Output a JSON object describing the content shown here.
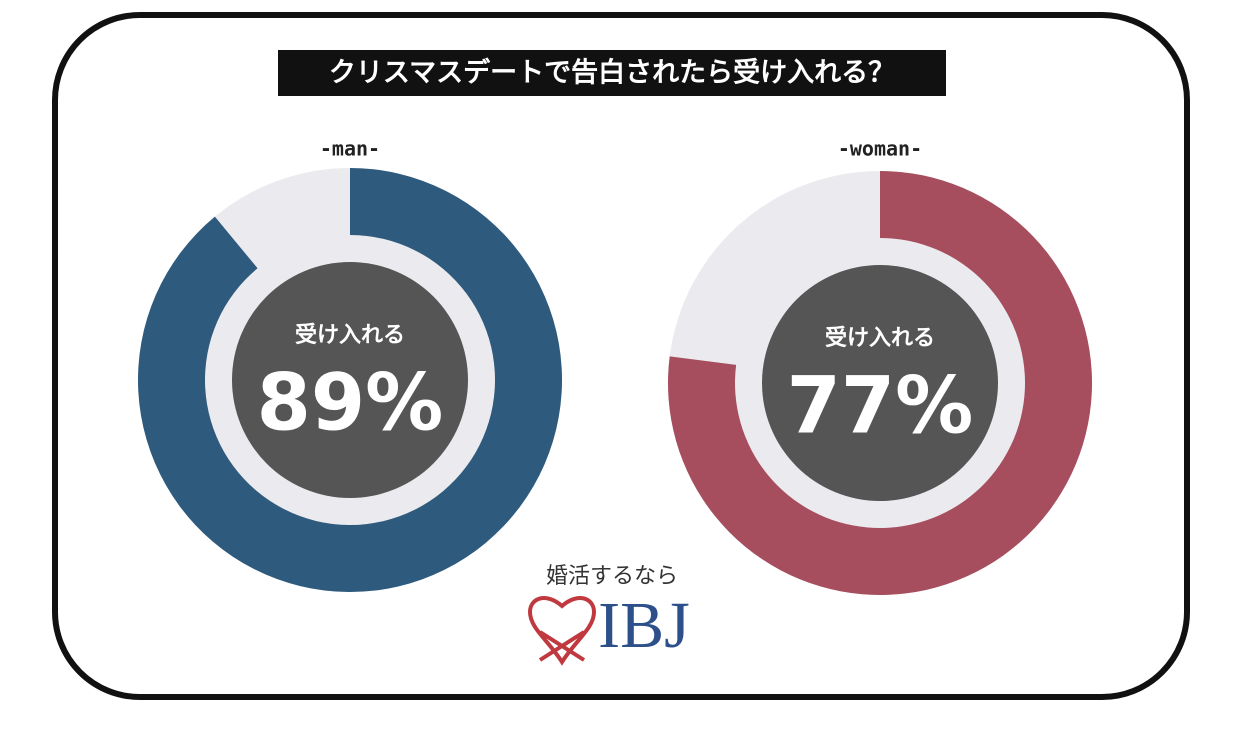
{
  "header": {
    "title": "クリスマスデートで告白されたら受け入れる？"
  },
  "chart_data": [
    {
      "type": "donut",
      "title": "-man-",
      "center_label": "受け入れる",
      "values": [
        89
      ],
      "value_labels": [
        "89%"
      ],
      "color": "#2d5a7d",
      "track_color": "#ebebef"
    },
    {
      "type": "donut",
      "title": "-woman-",
      "center_label": "受け入れる",
      "values": [
        77
      ],
      "value_labels": [
        "77%"
      ],
      "color": "#a64d5e",
      "track_color": "#ebebef"
    }
  ],
  "logo": {
    "tagline": "婚活するなら",
    "brand": "IBJ"
  }
}
